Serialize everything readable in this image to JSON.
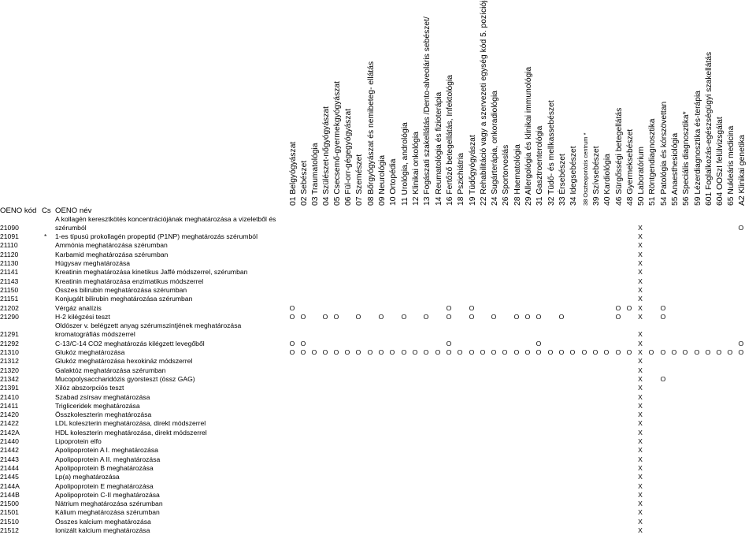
{
  "header": {
    "code_label": "OENO kód",
    "cs_label": "Cs",
    "name_label": "OENO név",
    "columns": [
      "01 Belgyógyászat",
      "02 Sebészet",
      "03 Traumatológia",
      "04 Szülészet-nőgyógyászat",
      "05 Csecsemő-gyermekgyógyászat",
      "06 Fül-orr-gégegyógyászat",
      "07 Szemészet",
      "08 Bőrgyógyászat és nemibeteg- ellátás",
      "09 Neurológia",
      "10 Ortopédia",
      "11 Urológia, andrológia",
      "12 Klinikai onkológia",
      "13 Fogászati szakellátás /Dento-alveoláris sebészet/",
      "14 Reumatológia és fizioterápia",
      "16 Fertőző betegellátás, Infektológia",
      "18 Pszichiátria",
      "19 Tüdőgyógyászat",
      "22 Rehabilitáció vagy a szervezeti egység kód 5. pozíciója \"",
      "24 Sugárterápia, onkoradiológia",
      "26 Sportorvoslás",
      "28 Haematológia",
      "29 Allergológia és klinikai immunológia",
      "31 Gasztroenterológia",
      "32 Tüdő- és mellkassebészet",
      "33 Érsebészet",
      "34 Idegsebészet",
      "38 Oszteoporózis centrum *",
      "39 Szívsebészet",
      "40 Kardiológia",
      "46 Sürgősségi betegellátás",
      "48 Gyermeksebészet",
      "50 Laboratórium",
      "51 Röntgendiagnosztika",
      "54 Patológia és kórszövettan",
      "55 Anaesthesiológia",
      "56 Speciális diagnosztika*",
      "59 Lézerdiagnosztika és-terápia",
      "601 Foglalkozás-egészségügyi szakellátás",
      "604 OOSzI felülvizsgálat",
      "65 Nukleáris medicina",
      "A2 Klinikai genetika"
    ]
  },
  "rows": [
    {
      "code": "21090",
      "cs": "",
      "name": "A kollagén keresztkötés koncentrációjának meghatározása a vizeletből és szérumból",
      "marks": {
        "31": "X",
        "40": "O"
      }
    },
    {
      "code": "21091",
      "cs": "*",
      "name": "1-es típusú prokollagén propeptid (P1NP) meghatározás szérumból",
      "marks": {
        "31": "X"
      }
    },
    {
      "code": "21110",
      "cs": "",
      "name": "Ammónia meghatározása szérumban",
      "marks": {
        "31": "X"
      }
    },
    {
      "code": "21120",
      "cs": "",
      "name": "Karbamid meghatározása szérumban",
      "marks": {
        "31": "X"
      }
    },
    {
      "code": "21130",
      "cs": "",
      "name": "Húgysav meghatározása",
      "marks": {
        "31": "X"
      }
    },
    {
      "code": "21141",
      "cs": "",
      "name": "Kreatinin meghatározása kinetikus Jaffé módszerrel, szérumban",
      "marks": {
        "31": "X"
      }
    },
    {
      "code": "21143",
      "cs": "",
      "name": "Kreatinin meghatározása enzimatikus módszerrel",
      "marks": {
        "31": "X"
      }
    },
    {
      "code": "21150",
      "cs": "",
      "name": "Összes bilirubin meghatározása szérumban",
      "marks": {
        "31": "X"
      }
    },
    {
      "code": "21151",
      "cs": "",
      "name": "Konjugált bilirubin meghatározása szérumban",
      "marks": {
        "31": "X"
      }
    },
    {
      "code": "21202",
      "cs": "",
      "name": "Vérgáz analízis",
      "marks": {
        "0": "O",
        "14": "O",
        "16": "O",
        "29": "O",
        "30": "O",
        "31": "X",
        "33": "O"
      }
    },
    {
      "code": "21290",
      "cs": "",
      "name": "H-2 kilégzési teszt",
      "marks": {
        "0": "O",
        "1": "O",
        "3": "O",
        "4": "O",
        "6": "O",
        "8": "O",
        "10": "O",
        "12": "O",
        "14": "O",
        "16": "O",
        "18": "O",
        "20": "O",
        "21": "O",
        "22": "O",
        "24": "O",
        "29": "O",
        "31": "X",
        "33": "O"
      }
    },
    {
      "code": "21291",
      "cs": "",
      "name": "Oldószer v. belégzett anyag szérumszintjének meghatározása kromatográfiás módszerrel",
      "marks": {
        "31": "X"
      }
    },
    {
      "code": "21292",
      "cs": "",
      "name": "C-13/C-14 CO2 meghatározás kilégzett levegőből",
      "marks": {
        "0": "O",
        "1": "O",
        "14": "O",
        "22": "O",
        "31": "X",
        "40": "O"
      }
    },
    {
      "code": "21310",
      "cs": "",
      "name": "Glukóz meghatározása",
      "marks": {
        "0": "O",
        "1": "O",
        "2": "O",
        "3": "O",
        "4": "O",
        "5": "O",
        "6": "O",
        "7": "O",
        "8": "O",
        "9": "O",
        "10": "O",
        "11": "O",
        "12": "O",
        "13": "O",
        "14": "O",
        "15": "O",
        "16": "O",
        "17": "O",
        "18": "O",
        "19": "O",
        "20": "O",
        "21": "O",
        "22": "O",
        "23": "O",
        "24": "O",
        "25": "O",
        "26": "O",
        "27": "O",
        "28": "O",
        "29": "O",
        "30": "O",
        "31": "X",
        "32": "O",
        "33": "O",
        "34": "O",
        "35": "O",
        "36": "O",
        "37": "O",
        "38": "O",
        "39": "O",
        "40": "O"
      }
    },
    {
      "code": "21312",
      "cs": "",
      "name": "Glukóz meghatározása hexokináz módszerrel",
      "marks": {
        "31": "X"
      }
    },
    {
      "code": "21320",
      "cs": "",
      "name": "Galaktóz meghatározása szérumban",
      "marks": {
        "31": "X"
      }
    },
    {
      "code": "21342",
      "cs": "",
      "name": "Mucopolysaccharidózis gyorsteszt (össz GAG)",
      "marks": {
        "31": "X",
        "33": "O"
      }
    },
    {
      "code": "21391",
      "cs": "",
      "name": "Xilóz abszorpciós teszt",
      "marks": {
        "31": "X"
      }
    },
    {
      "code": "21410",
      "cs": "",
      "name": "Szabad zsírsav meghatározása",
      "marks": {
        "31": "X"
      }
    },
    {
      "code": "21411",
      "cs": "",
      "name": "Trigliceridek meghatározása",
      "marks": {
        "31": "X"
      }
    },
    {
      "code": "21420",
      "cs": "",
      "name": "Összkoleszterin meghatározása",
      "marks": {
        "31": "X"
      }
    },
    {
      "code": "21422",
      "cs": "",
      "name": "LDL koleszterin meghatározása, direkt módszerrel",
      "marks": {
        "31": "X"
      }
    },
    {
      "code": "2142A",
      "cs": "",
      "name": "HDL koleszterin meghatározása, direkt módszerrel",
      "marks": {
        "31": "X"
      }
    },
    {
      "code": "21440",
      "cs": "",
      "name": "Lipoprotein elfo",
      "marks": {
        "31": "X"
      }
    },
    {
      "code": "21442",
      "cs": "",
      "name": "Apolipoprotein A I. meghatározása",
      "marks": {
        "31": "X"
      }
    },
    {
      "code": "21443",
      "cs": "",
      "name": "Apolipoprotein A II. meghatározása",
      "marks": {
        "31": "X"
      }
    },
    {
      "code": "21444",
      "cs": "",
      "name": "Apolipoprotein B meghatározása",
      "marks": {
        "31": "X"
      }
    },
    {
      "code": "21445",
      "cs": "",
      "name": "Lp(a) meghatározása",
      "marks": {
        "31": "X"
      }
    },
    {
      "code": "2144A",
      "cs": "",
      "name": "Apolipoprotein E meghatározása",
      "marks": {
        "31": "X"
      }
    },
    {
      "code": "2144B",
      "cs": "",
      "name": "Apolipoprotein C-II meghatározása",
      "marks": {
        "31": "X"
      }
    },
    {
      "code": "21500",
      "cs": "",
      "name": "Nátrium meghatározása szérumban",
      "marks": {
        "31": "X"
      }
    },
    {
      "code": "21501",
      "cs": "",
      "name": "Kálium meghatározása szérumban",
      "marks": {
        "31": "X"
      }
    },
    {
      "code": "21510",
      "cs": "",
      "name": "Összes kalcium meghatározása",
      "marks": {
        "31": "X"
      }
    },
    {
      "code": "21512",
      "cs": "",
      "name": "Ionizált kalcium meghatározása",
      "marks": {
        "31": "X"
      }
    }
  ]
}
